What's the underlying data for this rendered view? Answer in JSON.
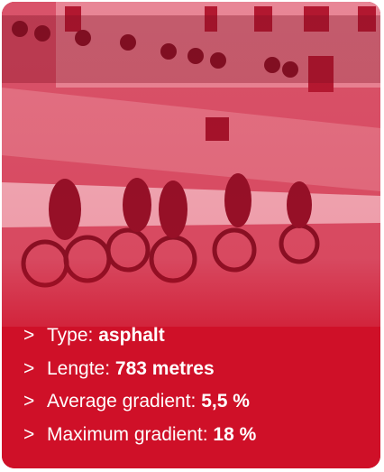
{
  "card": {
    "items": [
      {
        "marker": ">",
        "label": "Type:",
        "value": "asphalt"
      },
      {
        "marker": ">",
        "label": "Lengte:",
        "value": "783 metres"
      },
      {
        "marker": ">",
        "label": "Average gradient:",
        "value": "5,5 %"
      },
      {
        "marker": ">",
        "label": "Maximum gradient:",
        "value": "18 %"
      }
    ]
  }
}
